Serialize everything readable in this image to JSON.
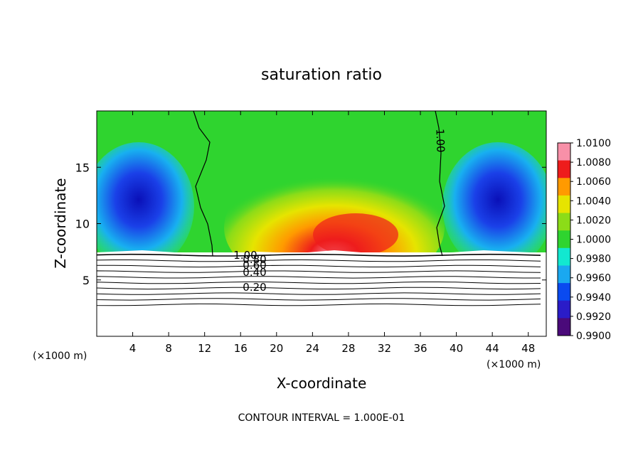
{
  "chart_data": {
    "type": "heatmap",
    "title": "saturation ratio",
    "xlabel": "X-coordinate",
    "ylabel": "Z-coordinate",
    "x_unit_label": "(×1000 m)",
    "x_unit_label_right": "(×1000 m)",
    "xlim": [
      0,
      50
    ],
    "ylim": [
      0,
      20
    ],
    "x_ticks": [
      4,
      8,
      12,
      16,
      20,
      24,
      28,
      32,
      36,
      40,
      44,
      48
    ],
    "y_ticks": [
      5,
      10,
      15
    ],
    "colorbar": {
      "levels": [
        "0.9900",
        "0.9920",
        "0.9940",
        "0.9960",
        "0.9980",
        "1.0000",
        "1.0020",
        "1.0040",
        "1.0060",
        "1.0080",
        "1.0100"
      ],
      "colors": [
        "#4a0a7a",
        "#2a1cc8",
        "#0a4af0",
        "#1aa8f0",
        "#12e8d0",
        "#2fd42f",
        "#8cdc18",
        "#e6e400",
        "#ff9a00",
        "#ee1c1c",
        "#f890a8"
      ]
    },
    "contour_interval": "CONTOUR INTERVAL = 1.000E-01",
    "contour_labels": [
      "1.00",
      "1.00",
      "0.80",
      "0.60",
      "0.40",
      "0.20"
    ],
    "bands": [
      {
        "x0": 0,
        "x1": 10.5,
        "value": 0.992
      },
      {
        "x0": 10.5,
        "x1": 13.5,
        "value": 0.9985
      },
      {
        "x0": 13.5,
        "x1": 37,
        "value": 1.003
      },
      {
        "x0": 37,
        "x1": 40,
        "value": 0.9985
      },
      {
        "x0": 40,
        "x1": 50,
        "value": 0.992
      }
    ],
    "contour_levels_below_cloud": [
      1.0,
      0.9,
      0.8,
      0.7,
      0.6,
      0.5,
      0.4,
      0.3,
      0.2,
      0.1
    ]
  }
}
